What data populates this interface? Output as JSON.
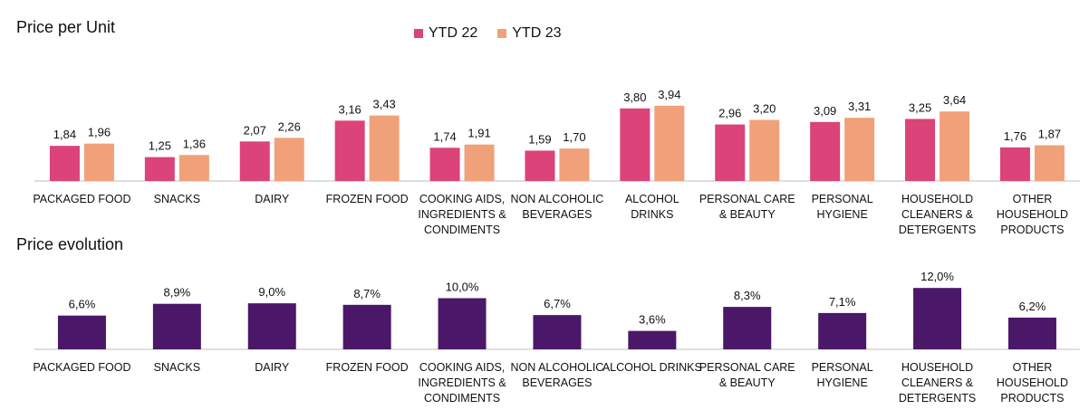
{
  "colors": {
    "ytd22": "#db4379",
    "ytd23": "#f0a179",
    "evolution": "#4a1769",
    "axis": "#bfbfbf"
  },
  "chart_data": [
    {
      "type": "bar",
      "title": "Price per Unit",
      "categories": [
        [
          "PACKAGED FOOD"
        ],
        [
          "SNACKS"
        ],
        [
          "DAIRY"
        ],
        [
          "FROZEN FOOD"
        ],
        [
          "COOKING AIDS,",
          "INGREDIENTS &",
          "CONDIMENTS"
        ],
        [
          "NON ALCOHOLIC",
          "BEVERAGES"
        ],
        [
          "ALCOHOL",
          "DRINKS"
        ],
        [
          "PERSONAL CARE",
          "& BEAUTY"
        ],
        [
          "PERSONAL",
          "HYGIENE"
        ],
        [
          "HOUSEHOLD",
          "CLEANERS &",
          "DETERGENTS"
        ],
        [
          "OTHER",
          "HOUSEHOLD",
          "PRODUCTS"
        ]
      ],
      "series": [
        {
          "name": "YTD 22",
          "values": [
            1.84,
            1.25,
            2.07,
            3.16,
            1.74,
            1.59,
            3.8,
            2.96,
            3.09,
            3.25,
            1.76
          ],
          "labels": [
            "1,84",
            "1,25",
            "2,07",
            "3,16",
            "1,74",
            "1,59",
            "3,80",
            "2,96",
            "3,09",
            "3,25",
            "1,76"
          ]
        },
        {
          "name": "YTD 23",
          "values": [
            1.96,
            1.36,
            2.26,
            3.43,
            1.91,
            1.7,
            3.94,
            3.2,
            3.31,
            3.64,
            1.87
          ],
          "labels": [
            "1,96",
            "1,36",
            "2,26",
            "3,43",
            "1,91",
            "1,70",
            "3,94",
            "3,20",
            "3,31",
            "3,64",
            "1,87"
          ]
        }
      ],
      "legend_position": "top-center",
      "grid": false
    },
    {
      "type": "bar",
      "title": "Price evolution",
      "categories": [
        [
          "PACKAGED FOOD"
        ],
        [
          "SNACKS"
        ],
        [
          "DAIRY"
        ],
        [
          "FROZEN FOOD"
        ],
        [
          "COOKING AIDS,",
          "INGREDIENTS &",
          "CONDIMENTS"
        ],
        [
          "NON ALCOHOLIC",
          "BEVERAGES"
        ],
        [
          "ALCOHOL DRINKS"
        ],
        [
          "PERSONAL CARE",
          "& BEAUTY"
        ],
        [
          "PERSONAL",
          "HYGIENE"
        ],
        [
          "HOUSEHOLD",
          "CLEANERS &",
          "DETERGENTS"
        ],
        [
          "OTHER",
          "HOUSEHOLD",
          "PRODUCTS"
        ]
      ],
      "values": [
        6.6,
        8.9,
        9.0,
        8.7,
        10.0,
        6.7,
        3.6,
        8.3,
        7.1,
        12.0,
        6.2
      ],
      "labels": [
        "6,6%",
        "8,9%",
        "9,0%",
        "8,7%",
        "10,0%",
        "6,7%",
        "3,6%",
        "8,3%",
        "7,1%",
        "12,0%",
        "6,2%"
      ],
      "grid": false
    }
  ]
}
